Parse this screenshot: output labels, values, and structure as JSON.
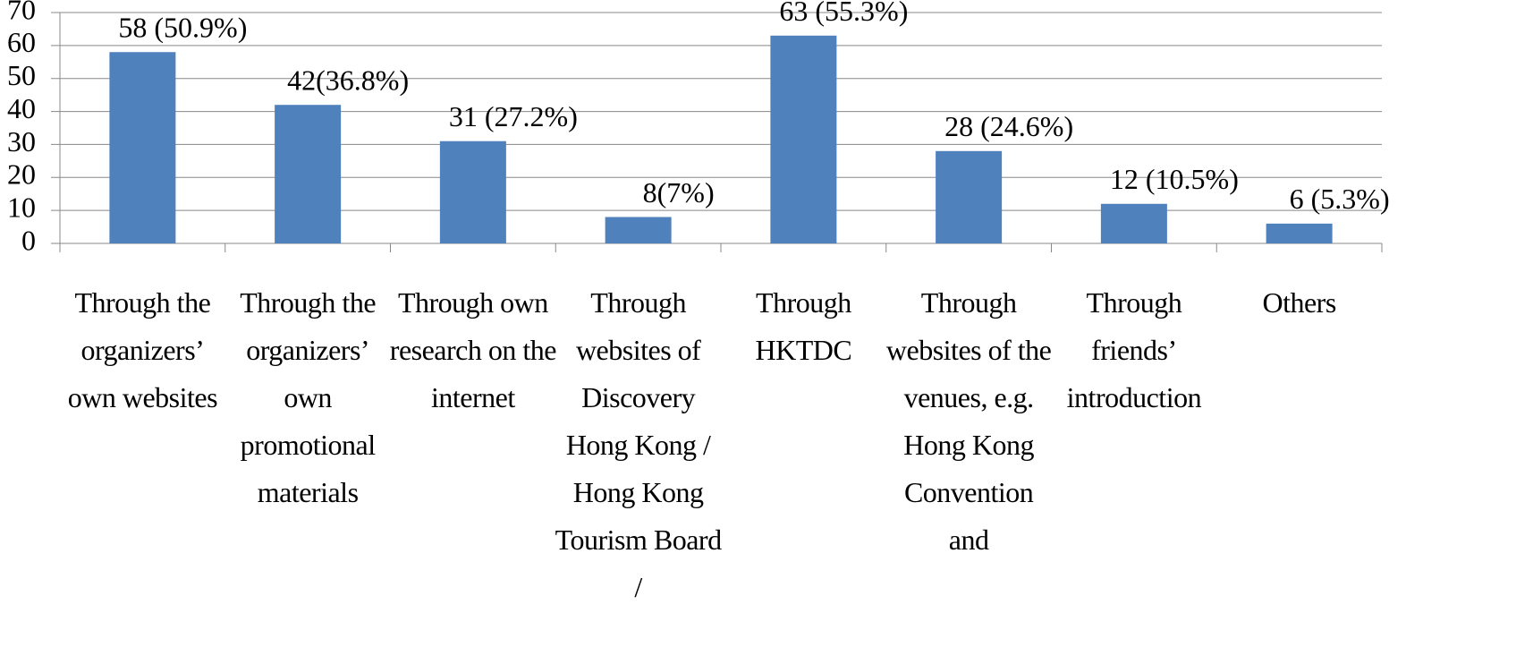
{
  "chart_data": {
    "type": "bar",
    "categories": [
      "Through the organizers’ own websites",
      "Through the organizers’ own promotional materials",
      "Through own research on the internet",
      "Through websites of Discovery Hong Kong / Hong Kong Tourism Board /",
      "Through HKTDC",
      "Through websites of the venues, e.g. Hong Kong Convention and",
      "Through friends’ introduction",
      "Others"
    ],
    "values": [
      58,
      42,
      31,
      8,
      63,
      28,
      12,
      6
    ],
    "value_labels": [
      "58 (50.9%)",
      "42(36.8%)",
      "31 (27.2%)",
      "8(7%)",
      "63 (55.3%)",
      "28 (24.6%)",
      "12 (10.5%)",
      "6 (5.3%)"
    ],
    "color": "#4f81bd",
    "ylim": [
      0,
      70
    ],
    "yticks": [
      0,
      10,
      20,
      30,
      40,
      50,
      60,
      70
    ],
    "grid": true
  }
}
